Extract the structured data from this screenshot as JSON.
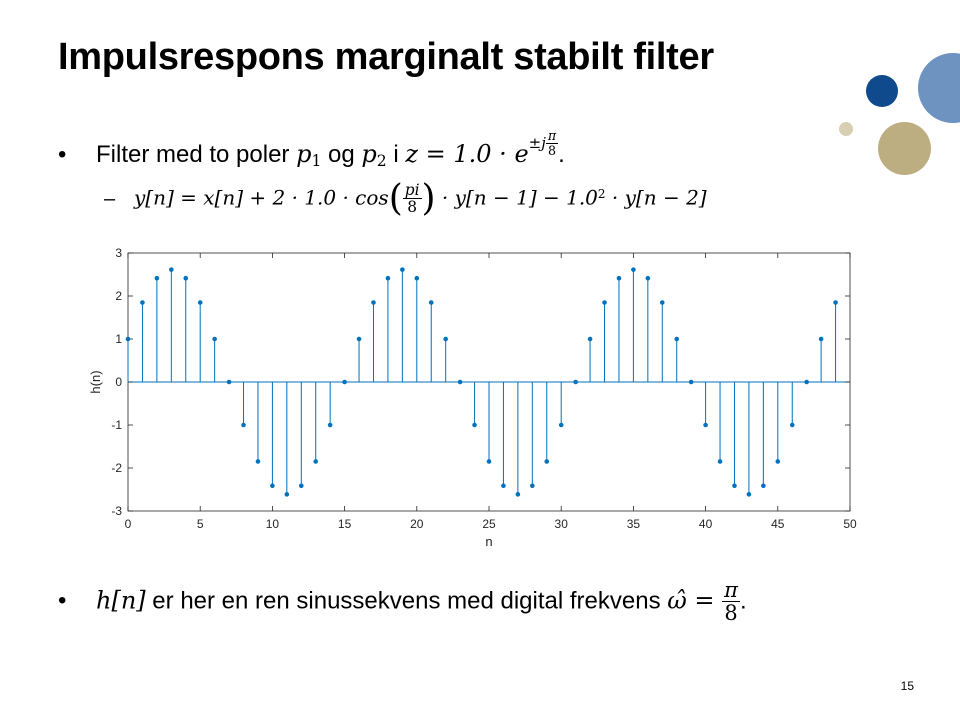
{
  "slide": {
    "title": "Impulsrespons marginalt stabilt filter",
    "page_number": "15",
    "bullet_symbol": "•",
    "sub_bullet_symbol": "–",
    "bullet1": {
      "text_a": "Filter med to poler ",
      "p1": "p",
      "p1_sub": "1",
      "text_b": " og ",
      "p2": "p",
      "p2_sub": "2",
      "text_c": " i ",
      "z_expr": "z = 1.0 · e",
      "exp_prefix": "±j",
      "exp_num": "π",
      "exp_den": "8",
      "end": "."
    },
    "sub_bullet": {
      "lhs": "y[n] = x[n] + 2 · 1.0 · cos",
      "frac_num": "pi",
      "frac_den": "8",
      "rhs_a": " · y[n − 1] − 1.0",
      "rhs_sup": "2",
      "rhs_b": " · y[n − 2]"
    },
    "bullet2": {
      "hn": "h[n]",
      "text": " er her en ren sinussekvens med digital frekvens ",
      "omega": "ω̂ = ",
      "frac_num": "π",
      "frac_den": "8",
      "end": "."
    }
  },
  "colors": {
    "stem": "#0072BD",
    "circle_dark_blue": "#0E4A8C",
    "circle_light_blue": "#6E93C0",
    "circle_tan": "#BDAE82",
    "circle_tan_small": "#D8CFB2"
  },
  "chart_data": {
    "type": "stem",
    "xlabel": "n",
    "ylabel": "h(n)",
    "xlim": [
      0,
      50
    ],
    "ylim": [
      -3,
      3
    ],
    "xticks": [
      0,
      5,
      10,
      15,
      20,
      25,
      30,
      35,
      40,
      45,
      50
    ],
    "yticks": [
      -3,
      -2,
      -1,
      0,
      1,
      2,
      3
    ],
    "grid": false,
    "x": [
      0,
      1,
      2,
      3,
      4,
      5,
      6,
      7,
      8,
      9,
      10,
      11,
      12,
      13,
      14,
      15,
      16,
      17,
      18,
      19,
      20,
      21,
      22,
      23,
      24,
      25,
      26,
      27,
      28,
      29,
      30,
      31,
      32,
      33,
      34,
      35,
      36,
      37,
      38,
      39,
      40,
      41,
      42,
      43,
      44,
      45,
      46,
      47,
      48,
      49
    ],
    "values": [
      1.0,
      1.848,
      2.414,
      2.613,
      2.414,
      1.848,
      1.0,
      0.0,
      -1.0,
      -1.848,
      -2.414,
      -2.613,
      -2.414,
      -1.848,
      -1.0,
      0.0,
      1.0,
      1.848,
      2.414,
      2.613,
      2.414,
      1.848,
      1.0,
      0.0,
      -1.0,
      -1.848,
      -2.414,
      -2.613,
      -2.414,
      -1.848,
      -1.0,
      0.0,
      1.0,
      1.848,
      2.414,
      2.613,
      2.414,
      1.848,
      1.0,
      0.0,
      -1.0,
      -1.848,
      -2.414,
      -2.613,
      -2.414,
      -1.848,
      -1.0,
      0.0,
      1.0,
      1.848
    ]
  }
}
